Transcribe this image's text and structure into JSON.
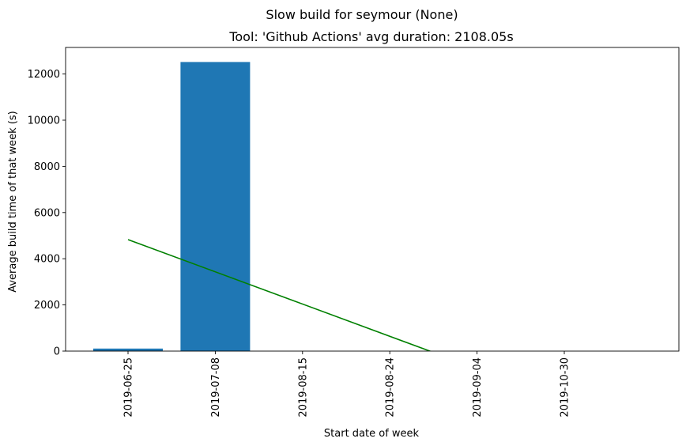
{
  "chart_data": {
    "type": "bar",
    "suptitle": "Slow build for seymour (None)",
    "title": "Tool: 'Github Actions' avg duration: 2108.05s",
    "xlabel": "Start date of week",
    "ylabel": "Average build time of that week (s)",
    "categories": [
      "2019-06-25",
      "2019-07-08",
      "2019-08-15",
      "2019-08-24",
      "2019-09-04",
      "2019-10-30"
    ],
    "values": [
      110,
      12520,
      0,
      0,
      0,
      0
    ],
    "ylim": [
      0,
      13150
    ],
    "yticks": [
      0,
      2000,
      4000,
      6000,
      8000,
      10000,
      12000
    ],
    "bar_color": "#1f77b4",
    "trend_line": {
      "color": "#008000",
      "x_start": "2019-06-25",
      "y_start": 4830,
      "x_end": "2019-10-30",
      "y_end": -2150
    },
    "grid": false,
    "legend": "none"
  }
}
